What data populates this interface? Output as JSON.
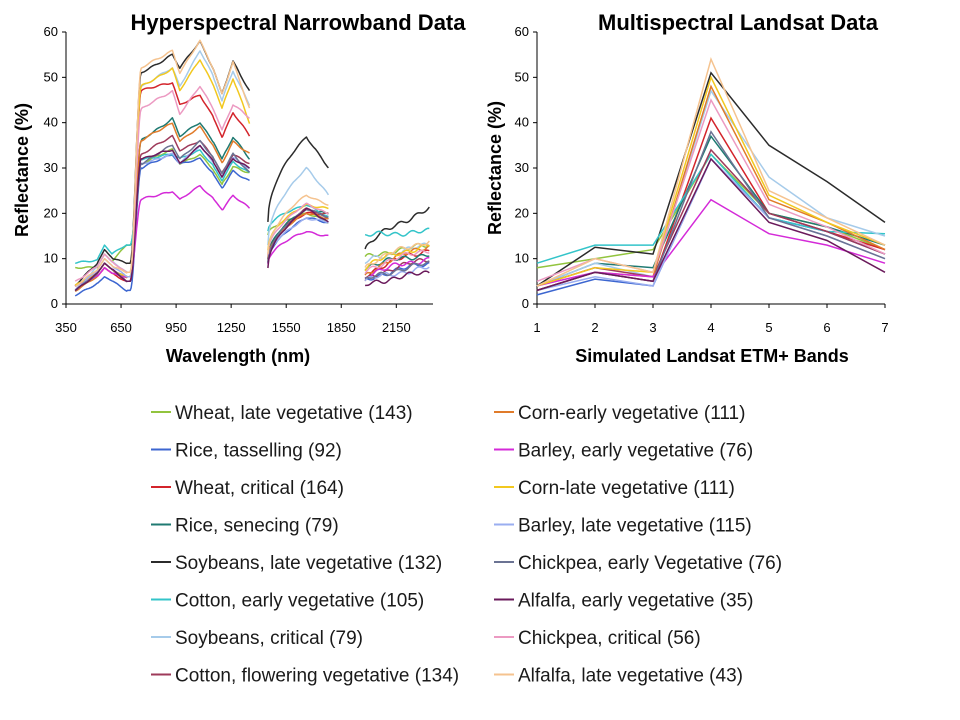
{
  "chart_data": [
    {
      "type": "line",
      "title": "Hyperspectral Narrowband Data",
      "xlabel": "Wavelength (nm)",
      "ylabel": "Reflectance (%)",
      "xlim": [
        350,
        2350
      ],
      "ylim": [
        0,
        60
      ],
      "xticks": [
        350,
        650,
        950,
        1250,
        1550,
        1850,
        2150
      ],
      "yticks": [
        0,
        10,
        20,
        30,
        40,
        50,
        60
      ],
      "spectrum_segments": [
        [
          400,
          1350
        ],
        [
          1450,
          1780
        ],
        [
          1980,
          2330
        ]
      ],
      "series": [
        {
          "name": "Wheat, late vegetative (143)",
          "values": [
            8,
            11,
            13,
            31,
            34,
            31,
            33,
            29,
            15,
            20,
            18,
            10,
            13
          ]
        },
        {
          "name": "Rice, tasselling (92)",
          "values": [
            2,
            6,
            3,
            30,
            33,
            31,
            32,
            27,
            9,
            19,
            18,
            5,
            9
          ]
        },
        {
          "name": "Wheat, critical (164)",
          "values": [
            4,
            8,
            5,
            47,
            49,
            44,
            46,
            37,
            10,
            20,
            20,
            6,
            12
          ]
        },
        {
          "name": "Rice, senecing (79)",
          "values": [
            4,
            9,
            6,
            36,
            41,
            37,
            40,
            32,
            10,
            21,
            20,
            8,
            11
          ]
        },
        {
          "name": "Soybeans, late vegetative (132)",
          "values": [
            4,
            12,
            9,
            51,
            55,
            52,
            58,
            47,
            18,
            37,
            30,
            12,
            21
          ]
        },
        {
          "name": "Cotton, early vegetative (105)",
          "values": [
            9,
            13,
            13,
            32,
            33,
            32,
            34,
            29,
            16,
            22,
            19,
            15,
            16
          ]
        },
        {
          "name": "Soybeans, critical (79)",
          "values": [
            3,
            11,
            7,
            48,
            52,
            48,
            56,
            44,
            13,
            30,
            24,
            9,
            13
          ]
        },
        {
          "name": "Cotton, flowering vegetative (134)",
          "values": [
            3,
            9,
            5,
            33,
            37,
            34,
            36,
            31,
            9,
            21,
            19,
            5,
            10
          ]
        },
        {
          "name": "Corn-early vegetative (111)",
          "values": [
            3,
            8,
            6,
            36,
            40,
            36,
            39,
            33,
            10,
            20,
            19,
            6,
            13
          ]
        },
        {
          "name": "Barley, early vegetative (76)",
          "values": [
            4,
            8,
            6,
            23,
            25,
            23,
            26,
            21,
            9,
            16,
            15,
            6,
            10
          ]
        },
        {
          "name": "Corn-late vegetative (111)",
          "values": [
            4,
            9,
            6,
            48,
            52,
            47,
            54,
            40,
            12,
            22,
            21,
            8,
            13
          ]
        },
        {
          "name": "Barley, late vegetative (115)",
          "values": [
            3,
            10,
            6,
            31,
            33,
            31,
            35,
            30,
            9,
            19,
            18,
            5,
            8
          ]
        },
        {
          "name": "Chickpea, early Vegetative (76)",
          "values": [
            3,
            9,
            5,
            31,
            35,
            32,
            36,
            29,
            9,
            21,
            19,
            5,
            9
          ]
        },
        {
          "name": "Alfalfa, early vegetative (35)",
          "values": [
            3,
            9,
            5,
            32,
            34,
            31,
            35,
            30,
            8,
            21,
            18,
            4,
            7
          ]
        },
        {
          "name": "Chickpea, critical (56)",
          "values": [
            5,
            11,
            7,
            43,
            47,
            42,
            48,
            41,
            11,
            22,
            20,
            7,
            12
          ]
        },
        {
          "name": "Alfalfa, late vegetative (43)",
          "values": [
            4,
            10,
            7,
            52,
            56,
            51,
            58,
            43,
            11,
            24,
            22,
            8,
            14
          ]
        }
      ]
    },
    {
      "type": "line",
      "title": "Multispectral Landsat Data",
      "xlabel": "Simulated Landsat ETM+ Bands",
      "ylabel": "Reflectance (%)",
      "xlim": [
        1,
        7
      ],
      "ylim": [
        0,
        60
      ],
      "x": [
        1,
        2,
        3,
        4,
        5,
        6,
        7
      ],
      "yticks": [
        0,
        10,
        20,
        30,
        40,
        50,
        60
      ],
      "series": [
        {
          "name": "Wheat, late vegetative (143)",
          "values": [
            8,
            10,
            12,
            33,
            20,
            17,
            12
          ]
        },
        {
          "name": "Rice, tasselling (92)",
          "values": [
            2,
            5.5,
            4,
            32,
            19,
            16,
            11
          ]
        },
        {
          "name": "Wheat, critical (164)",
          "values": [
            3,
            7,
            5,
            41,
            20,
            16,
            12
          ]
        },
        {
          "name": "Rice, senecing (79)",
          "values": [
            4,
            9,
            8,
            37,
            20,
            17,
            13
          ]
        },
        {
          "name": "Soybeans, late vegetative (132)",
          "values": [
            4,
            12.5,
            11,
            51,
            35,
            27,
            18
          ]
        },
        {
          "name": "Cotton, early vegetative (105)",
          "values": [
            9,
            13,
            13,
            33,
            19,
            16,
            15.5
          ]
        },
        {
          "name": "Soybeans, critical (79)",
          "values": [
            4,
            9,
            6,
            47,
            28,
            19,
            15
          ]
        },
        {
          "name": "Cotton, flowering vegetative (134)",
          "values": [
            4,
            8,
            6,
            34,
            20,
            16,
            11
          ]
        },
        {
          "name": "Corn-early vegetative (111)",
          "values": [
            3,
            7,
            6,
            48,
            23,
            18,
            12
          ]
        },
        {
          "name": "Barley, early vegetative (76)",
          "values": [
            4,
            7,
            6,
            23,
            15.5,
            13,
            9
          ]
        },
        {
          "name": "Corn-late vegetative (111)",
          "values": [
            4,
            8,
            7,
            50,
            24,
            18,
            13
          ]
        },
        {
          "name": "Barley, late vegetative (115)",
          "values": [
            3,
            6,
            4,
            32,
            19,
            15,
            10
          ]
        },
        {
          "name": "Chickpea, early Vegetative (76)",
          "values": [
            3,
            7,
            5,
            38,
            19,
            15,
            10
          ]
        },
        {
          "name": "Alfalfa, early vegetative (35)",
          "values": [
            3,
            7,
            5,
            32,
            18,
            14,
            7
          ]
        },
        {
          "name": "Chickpea, critical (56)",
          "values": [
            5,
            10,
            7,
            45,
            22,
            17,
            11
          ]
        },
        {
          "name": "Alfalfa, late vegetative (43)",
          "values": [
            4,
            10,
            7,
            54,
            25,
            19,
            13
          ]
        }
      ]
    }
  ],
  "legend": {
    "items": [
      {
        "label": "Wheat, late vegetative (143)",
        "color": "#92c43e"
      },
      {
        "label": "Rice, tasselling (92)",
        "color": "#3c66d0"
      },
      {
        "label": "Wheat, critical (164)",
        "color": "#d3242b"
      },
      {
        "label": "Rice, senecing (79)",
        "color": "#1f7a72"
      },
      {
        "label": "Soybeans, late vegetative (132)",
        "color": "#2b2b2b"
      },
      {
        "label": "Cotton, early vegetative (105)",
        "color": "#33c4c9"
      },
      {
        "label": "Soybeans, critical (79)",
        "color": "#a6cbea"
      },
      {
        "label": "Cotton, flowering vegetative (134)",
        "color": "#9e3a5a"
      },
      {
        "label": "Corn-early vegetative (111)",
        "color": "#e07b2a"
      },
      {
        "label": "Barley, early vegetative (76)",
        "color": "#d42ad8"
      },
      {
        "label": "Corn-late vegetative (111)",
        "color": "#f2c81f"
      },
      {
        "label": "Barley, late vegetative (115)",
        "color": "#9aaef0"
      },
      {
        "label": "Chickpea, early Vegetative (76)",
        "color": "#6b7393"
      },
      {
        "label": "Alfalfa, early vegetative (35)",
        "color": "#6a1a5b"
      },
      {
        "label": "Chickpea, critical (56)",
        "color": "#ec9ac2"
      },
      {
        "label": "Alfalfa, late vegetative (43)",
        "color": "#f5c38f"
      }
    ]
  }
}
